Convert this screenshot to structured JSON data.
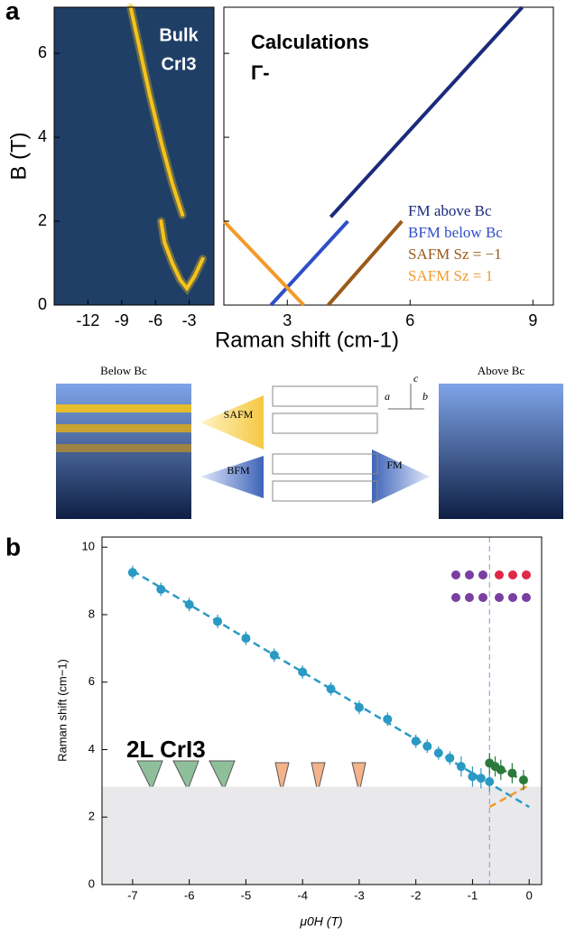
{
  "panel_labels": [
    "a",
    "b"
  ],
  "diagram": {
    "below": "Below Bc",
    "above": "Above Bc",
    "safm": "SAFM",
    "bfm": "BFM",
    "fm": "FM",
    "axes": [
      "c",
      "a",
      "b"
    ]
  },
  "chart_data": [
    {
      "type": "line",
      "background": "#1f3f66",
      "annotations": [
        "Bulk",
        "CrI3"
      ],
      "ylabel": "B (T)",
      "xlim": [
        -15,
        -0.8
      ],
      "xticks": [
        -12,
        -9,
        -6,
        -3
      ],
      "ylim": [
        0,
        7.1
      ],
      "yticks": [
        0,
        2,
        4,
        6
      ],
      "series": [
        {
          "color": "#f7c21a",
          "x": [
            -8.2,
            -6.5,
            -5.5,
            -4.5,
            -3.6
          ],
          "values": [
            7.1,
            5.0,
            3.9,
            2.9,
            2.15
          ]
        },
        {
          "color": "#f7c21a",
          "x": [
            -5.5,
            -5.2,
            -4.5,
            -3.8,
            -3.2,
            -2.5,
            -1.8
          ],
          "values": [
            2.0,
            1.5,
            1.0,
            0.6,
            0.4,
            0.7,
            1.1
          ]
        }
      ]
    },
    {
      "type": "line",
      "title": "Calculations",
      "subtitle": "Γ-",
      "xlabel": "Raman shift (cm-1)",
      "xlim": [
        1.45,
        9.5
      ],
      "xticks": [
        3,
        6,
        9
      ],
      "ylim": [
        0,
        7.1
      ],
      "series": [
        {
          "name": "FM above Bc",
          "color": "#1b2a7c",
          "x": [
            4.06,
            8.74
          ],
          "values": [
            2.1,
            7.1
          ]
        },
        {
          "name": "BFM below Bc",
          "color": "#2f4fc8",
          "x": [
            2.6,
            4.48
          ],
          "values": [
            0,
            2.0
          ]
        },
        {
          "name": "SAFM Sz = −1",
          "color": "#9a5a1a",
          "x": [
            4.0,
            5.8
          ],
          "values": [
            0,
            2.0
          ]
        },
        {
          "name": "SAFM Sz = 1",
          "color": "#f39a2b",
          "x": [
            1.45,
            3.4
          ],
          "values": [
            2.0,
            0
          ]
        }
      ]
    },
    {
      "type": "scatter",
      "annotation": "2L CrI3",
      "xlabel": "μ0H (T)",
      "ylabel": "Raman shift (cm−1)",
      "xlim": [
        -7.54,
        0.22
      ],
      "xticks": [
        -7,
        -6,
        -5,
        -4,
        -3,
        -2,
        -1,
        0
      ],
      "ylim": [
        0,
        10.3
      ],
      "yticks": [
        0,
        2,
        4,
        6,
        8,
        10
      ],
      "shade_below": 2.9,
      "vline": -0.7,
      "series": [
        {
          "color": "#2a9ac4",
          "x": [
            -7,
            -6.5,
            -6,
            -5.5,
            -5,
            -4.5,
            -4,
            -3.5,
            -3,
            -2.5,
            -2,
            -1.8,
            -1.6,
            -1.4,
            -1.2,
            -1,
            -0.85,
            -0.7
          ],
          "values": [
            9.25,
            8.75,
            8.3,
            7.8,
            7.3,
            6.8,
            6.3,
            5.8,
            5.25,
            4.9,
            4.25,
            4.1,
            3.9,
            3.75,
            3.5,
            3.2,
            3.15,
            3.05
          ],
          "errors": [
            0.2,
            0.2,
            0.2,
            0.2,
            0.2,
            0.2,
            0.2,
            0.2,
            0.2,
            0.2,
            0.2,
            0.2,
            0.2,
            0.2,
            0.3,
            0.3,
            0.3,
            0.3
          ]
        },
        {
          "color": "#2b7a3c",
          "x": [
            -0.7,
            -0.6,
            -0.5,
            -0.3,
            -0.1
          ],
          "values": [
            3.6,
            3.5,
            3.4,
            3.3,
            3.1
          ],
          "errors": [
            0.3,
            0.3,
            0.3,
            0.3,
            0.3
          ]
        }
      ],
      "fits": [
        {
          "color": "#2a9ac4",
          "x": [
            -7,
            0
          ],
          "values": [
            9.3,
            2.3
          ]
        },
        {
          "color": "#2b7a3c",
          "x": [
            -0.7,
            0
          ],
          "values": [
            3.6,
            3.0
          ]
        },
        {
          "color": "#f39a2b",
          "x": [
            -0.7,
            0
          ],
          "values": [
            2.3,
            2.95
          ]
        }
      ]
    }
  ]
}
